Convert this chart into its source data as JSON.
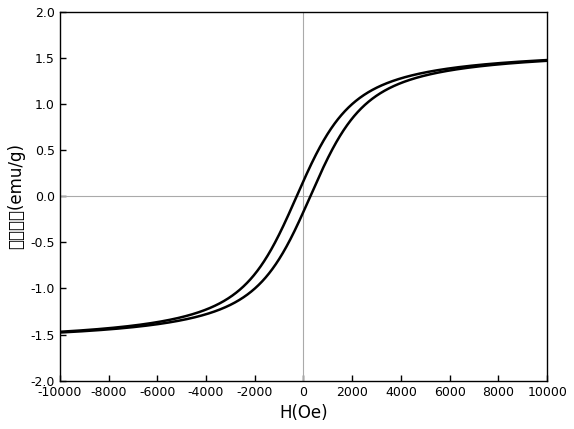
{
  "xlim": [
    -10000,
    10000
  ],
  "ylim": [
    -2.0,
    2.0
  ],
  "xticks": [
    -10000,
    -8000,
    -6000,
    -4000,
    -2000,
    0,
    2000,
    4000,
    6000,
    8000,
    10000
  ],
  "yticks": [
    -2.0,
    -1.5,
    -1.0,
    -0.5,
    0.0,
    0.5,
    1.0,
    1.5,
    2.0
  ],
  "xlabel": "H(Oe)",
  "ylabel": "磁化强度(emu/g)",
  "ms": 1.62,
  "hc": 280,
  "a_param": 900,
  "curve_color": "#000000",
  "line_color": "#aaaaaa",
  "background_color": "#ffffff",
  "figsize": [
    5.74,
    4.29
  ],
  "dpi": 100
}
